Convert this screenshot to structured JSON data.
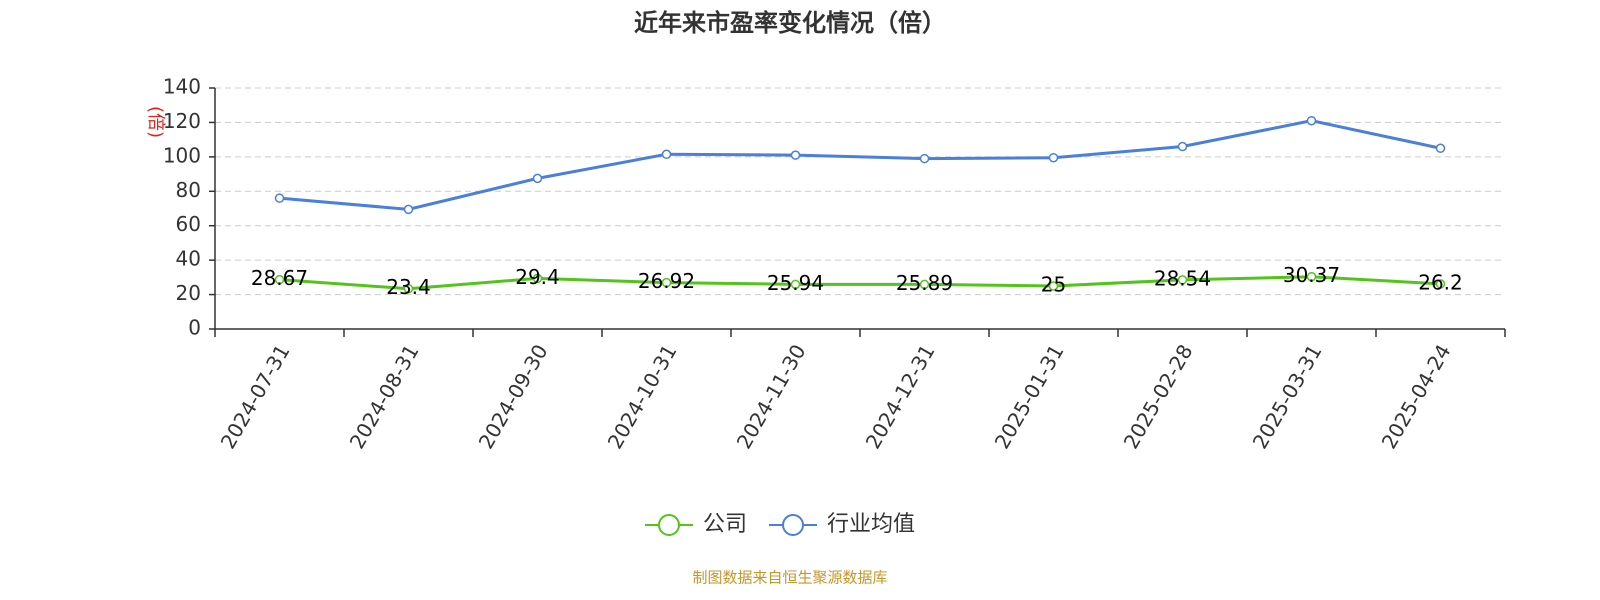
{
  "chart_data": {
    "type": "line",
    "title": "近年来市盈率变化情况（倍）",
    "y_label": "(倍)",
    "source": "制图数据来自恒生聚源数据库",
    "categories": [
      "2024-07-31",
      "2024-08-31",
      "2024-09-30",
      "2024-10-31",
      "2024-11-30",
      "2024-12-31",
      "2025-01-31",
      "2025-02-28",
      "2025-03-31",
      "2025-04-24"
    ],
    "series": [
      {
        "name": "公司",
        "color": "#52c41a",
        "values": [
          28.67,
          23.4,
          29.4,
          26.92,
          25.94,
          25.89,
          25,
          28.54,
          30.37,
          26.2
        ]
      },
      {
        "name": "行业均值",
        "color": "#4a7fdb",
        "values": [
          76,
          69.5,
          87.5,
          101.5,
          101,
          99,
          99.5,
          106,
          121,
          105
        ]
      }
    ],
    "ylim": [
      0,
      140
    ],
    "yticks": [
      0,
      20,
      40,
      60,
      80,
      100,
      120,
      140
    ],
    "grid": true
  }
}
